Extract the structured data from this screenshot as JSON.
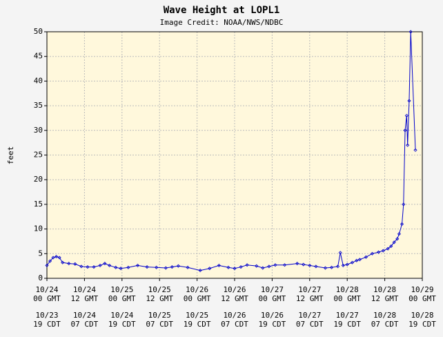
{
  "chart_data": {
    "type": "line",
    "title": "Wave Height at LOPL1",
    "subtitle": "Image Credit: NOAA/NWS/NDBC",
    "ylabel": "feet",
    "xlim": [
      0,
      120
    ],
    "ylim": [
      0,
      50
    ],
    "yticks": [
      0,
      5,
      10,
      15,
      20,
      25,
      30,
      35,
      40,
      45,
      50
    ],
    "xticks": [
      {
        "value": 0,
        "label": "10/24\n00 GMT"
      },
      {
        "value": 12,
        "label": "10/24\n12 GMT"
      },
      {
        "value": 24,
        "label": "10/25\n00 GMT"
      },
      {
        "value": 36,
        "label": "10/25\n12 GMT"
      },
      {
        "value": 48,
        "label": "10/26\n00 GMT"
      },
      {
        "value": 60,
        "label": "10/26\n12 GMT"
      },
      {
        "value": 72,
        "label": "10/27\n00 GMT"
      },
      {
        "value": 84,
        "label": "10/27\n12 GMT"
      },
      {
        "value": 96,
        "label": "10/28\n00 GMT"
      },
      {
        "value": 108,
        "label": "10/28\n12 GMT"
      },
      {
        "value": 120,
        "label": "10/29\n00 GMT"
      }
    ],
    "x2ticks": [
      {
        "value": 0,
        "label": "10/23\n19 CDT"
      },
      {
        "value": 12,
        "label": "10/24\n07 CDT"
      },
      {
        "value": 24,
        "label": "10/24\n19 CDT"
      },
      {
        "value": 36,
        "label": "10/25\n07 CDT"
      },
      {
        "value": 48,
        "label": "10/25\n19 CDT"
      },
      {
        "value": 60,
        "label": "10/26\n07 CDT"
      },
      {
        "value": 72,
        "label": "10/26\n19 CDT"
      },
      {
        "value": 84,
        "label": "10/27\n07 CDT"
      },
      {
        "value": 96,
        "label": "10/27\n19 CDT"
      },
      {
        "value": 108,
        "label": "10/28\n07 CDT"
      },
      {
        "value": 120,
        "label": "10/28\n19 CDT"
      }
    ],
    "grid": true,
    "series": [
      {
        "name": "Wave Height",
        "color": "#0000cc",
        "x": [
          0,
          1,
          2,
          3,
          4,
          5,
          7,
          9,
          11,
          13,
          15,
          17,
          18.5,
          20,
          22,
          23.6,
          26,
          29,
          32,
          35,
          38,
          40,
          42,
          45,
          49,
          52,
          55,
          58,
          60,
          62,
          64,
          67,
          69,
          71,
          73,
          76,
          80,
          82,
          84,
          86,
          89,
          91,
          93,
          93.8,
          94.7,
          96,
          97.6,
          99,
          100,
          102,
          104,
          106,
          107.5,
          109,
          110,
          111,
          112,
          112.6,
          113.5,
          114,
          114.5,
          115,
          115.3,
          115.8,
          116.3,
          117.8
        ],
        "values": [
          2.6,
          3.5,
          4.2,
          4.4,
          4.2,
          3.2,
          3.0,
          2.9,
          2.4,
          2.3,
          2.3,
          2.6,
          3.0,
          2.6,
          2.2,
          2.0,
          2.2,
          2.6,
          2.3,
          2.2,
          2.1,
          2.3,
          2.5,
          2.2,
          1.6,
          2.0,
          2.6,
          2.2,
          2.0,
          2.3,
          2.7,
          2.5,
          2.1,
          2.4,
          2.7,
          2.7,
          3.0,
          2.8,
          2.6,
          2.4,
          2.1,
          2.2,
          2.4,
          5.2,
          2.6,
          2.8,
          3.2,
          3.6,
          3.8,
          4.3,
          5.0,
          5.3,
          5.6,
          6.0,
          6.5,
          7.3,
          8.0,
          9.0,
          11.0,
          15.0,
          30.0,
          33.0,
          27.0,
          36.0,
          50.0,
          26.0
        ]
      }
    ]
  }
}
